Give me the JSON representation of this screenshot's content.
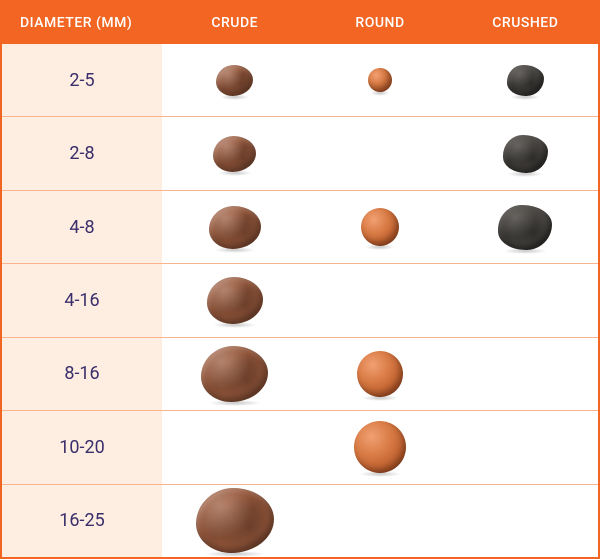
{
  "table": {
    "border_color": "#f26522",
    "header_bg": "#f26522",
    "header_text_color": "#ffffff",
    "header_fontsize": 14,
    "row_divider_color": "#f7b48d",
    "diameter_col_bg": "#fdeee1",
    "diameter_text_color": "#3a2e6b",
    "diameter_fontsize": 18,
    "columns": {
      "diameter": "DIAMETER (MM)",
      "crude": "CRUDE",
      "round": "ROUND",
      "crushed": "CRUSHED"
    },
    "rows": [
      {
        "diameter": "2-5",
        "crude": {
          "present": true,
          "size": 34
        },
        "round": {
          "present": true,
          "size": 24
        },
        "crushed": {
          "present": true,
          "size": 34
        }
      },
      {
        "diameter": "2-8",
        "crude": {
          "present": true,
          "size": 40
        },
        "round": {
          "present": false
        },
        "crushed": {
          "present": true,
          "size": 42
        }
      },
      {
        "diameter": "4-8",
        "crude": {
          "present": true,
          "size": 48
        },
        "round": {
          "present": true,
          "size": 38
        },
        "crushed": {
          "present": true,
          "size": 50
        }
      },
      {
        "diameter": "4-16",
        "crude": {
          "present": true,
          "size": 52
        },
        "round": {
          "present": false
        },
        "crushed": {
          "present": false
        }
      },
      {
        "diameter": "8-16",
        "crude": {
          "present": true,
          "size": 62
        },
        "round": {
          "present": true,
          "size": 46
        },
        "crushed": {
          "present": false
        }
      },
      {
        "diameter": "10-20",
        "crude": {
          "present": false
        },
        "round": {
          "present": true,
          "size": 52
        },
        "crushed": {
          "present": false
        }
      },
      {
        "diameter": "16-25",
        "crude": {
          "present": true,
          "size": 72
        },
        "round": {
          "present": false
        },
        "crushed": {
          "present": false
        }
      }
    ],
    "pebble_styles": {
      "crude": {
        "base_color": "#9a5a3d"
      },
      "round": {
        "base_color": "#d87b45"
      },
      "crushed": {
        "base_color": "#4d4a46"
      }
    }
  }
}
